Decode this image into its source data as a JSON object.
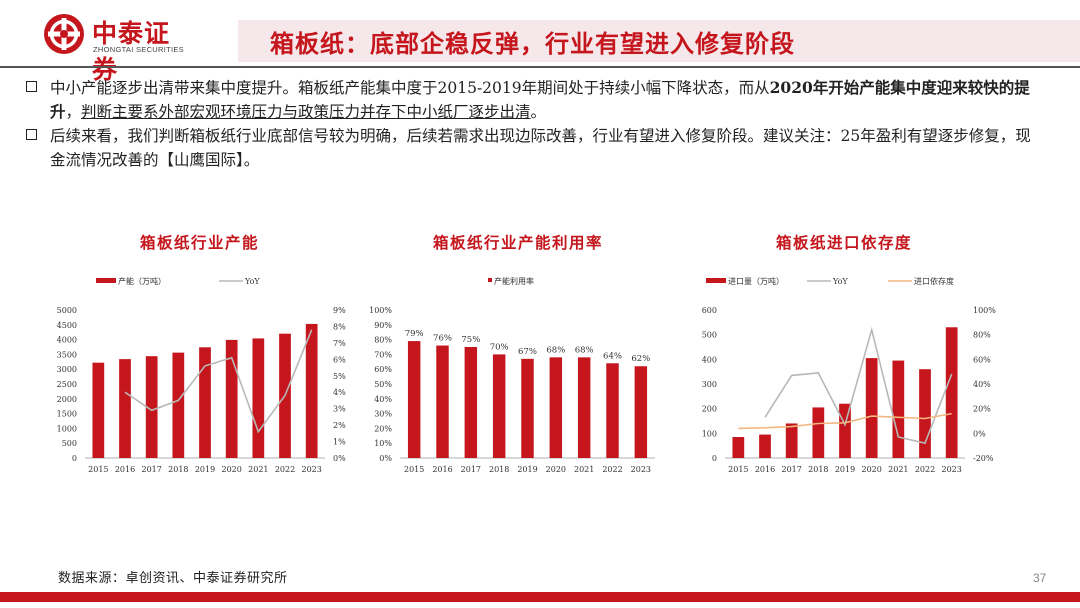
{
  "header": {
    "logo_cn": "中泰证券",
    "logo_en": "ZHONGTAI SECURITIES",
    "title": "箱板纸：底部企稳反弹，行业有望进入修复阶段"
  },
  "bullets": {
    "b1_part1": "中小产能逐步出清带来集中度提升。箱板纸产能集中度于2015-2019年期间处于持续小幅下降状态，而从",
    "b1_bold1": "2020年开始产能集中度迎来较快的提升",
    "b1_part2": "，",
    "b1_underline": "判断主要系外部宏观环境压力与政策压力并存下中小纸厂逐步出清",
    "b1_part3": "。",
    "b2_text": "后续来看，我们判断箱板纸行业底部信号较为明确，后续若需求出现边际改善，行业有望进入修复阶段。建议关注：25年盈利有望逐步修复，现金流情况改善的【山鹰国际】。"
  },
  "colors": {
    "brand": "#c4161c",
    "bar": "#c4161c",
    "yoy": "#b8b8b8",
    "dep": "#f2b880"
  },
  "chart_data": [
    {
      "type": "bar",
      "title": "箱板纸行业产能",
      "categories": [
        "2015",
        "2016",
        "2017",
        "2018",
        "2019",
        "2020",
        "2021",
        "2022",
        "2023"
      ],
      "series": [
        {
          "name": "产能（万吨）",
          "kind": "bar",
          "axis": "left",
          "values": [
            3220,
            3340,
            3440,
            3560,
            3740,
            3990,
            4040,
            4200,
            4530
          ]
        },
        {
          "name": "YoY",
          "kind": "line",
          "axis": "right",
          "values": [
            null,
            4.0,
            2.9,
            3.5,
            5.6,
            6.1,
            1.6,
            3.8,
            7.8
          ]
        }
      ],
      "yticks_left": [
        "0",
        "500",
        "1000",
        "1500",
        "2000",
        "2500",
        "3000",
        "3500",
        "4000",
        "4500",
        "5000"
      ],
      "ylim_left": [
        0,
        5000
      ],
      "yticks_right": [
        "0%",
        "1%",
        "2%",
        "3%",
        "4%",
        "5%",
        "6%",
        "7%",
        "8%",
        "9%"
      ],
      "ylim_right": [
        0,
        9
      ],
      "legend": "top"
    },
    {
      "type": "bar",
      "title": "箱板纸行业产能利用率",
      "categories": [
        "2015",
        "2016",
        "2017",
        "2018",
        "2019",
        "2020",
        "2021",
        "2022",
        "2023"
      ],
      "series": [
        {
          "name": "产能利用率",
          "kind": "bar",
          "axis": "left",
          "values": [
            79,
            76,
            75,
            70,
            67,
            68,
            68,
            64,
            62
          ],
          "labels": [
            "79%",
            "76%",
            "75%",
            "70%",
            "67%",
            "68%",
            "68%",
            "64%",
            "62%"
          ]
        }
      ],
      "yticks_left": [
        "0%",
        "10%",
        "20%",
        "30%",
        "40%",
        "50%",
        "60%",
        "70%",
        "80%",
        "90%",
        "100%"
      ],
      "ylim_left": [
        0,
        100
      ],
      "legend": "top"
    },
    {
      "type": "bar",
      "title": "箱板纸进口依存度",
      "categories": [
        "2015",
        "2016",
        "2017",
        "2018",
        "2019",
        "2020",
        "2021",
        "2022",
        "2023"
      ],
      "series": [
        {
          "name": "进口量（万吨）",
          "kind": "bar",
          "axis": "left",
          "values": [
            85,
            95,
            140,
            205,
            220,
            405,
            395,
            360,
            530
          ]
        },
        {
          "name": "YoY",
          "kind": "line",
          "axis": "right",
          "values": [
            null,
            13,
            47,
            49,
            7,
            84,
            -3,
            -8,
            48
          ]
        },
        {
          "name": "进口依存度",
          "kind": "line",
          "axis": "right",
          "values": [
            4,
            4.5,
            5.5,
            8,
            8.5,
            14,
            13,
            12,
            16
          ]
        }
      ],
      "yticks_left": [
        "0",
        "100",
        "200",
        "300",
        "400",
        "500",
        "600"
      ],
      "ylim_left": [
        0,
        600
      ],
      "yticks_right": [
        "-20%",
        "0%",
        "20%",
        "40%",
        "60%",
        "80%",
        "100%"
      ],
      "ylim_right": [
        -20,
        100
      ],
      "legend": "top"
    }
  ],
  "footer": {
    "source": "数据来源：卓创资讯、中泰证券研究所",
    "page": "37"
  }
}
